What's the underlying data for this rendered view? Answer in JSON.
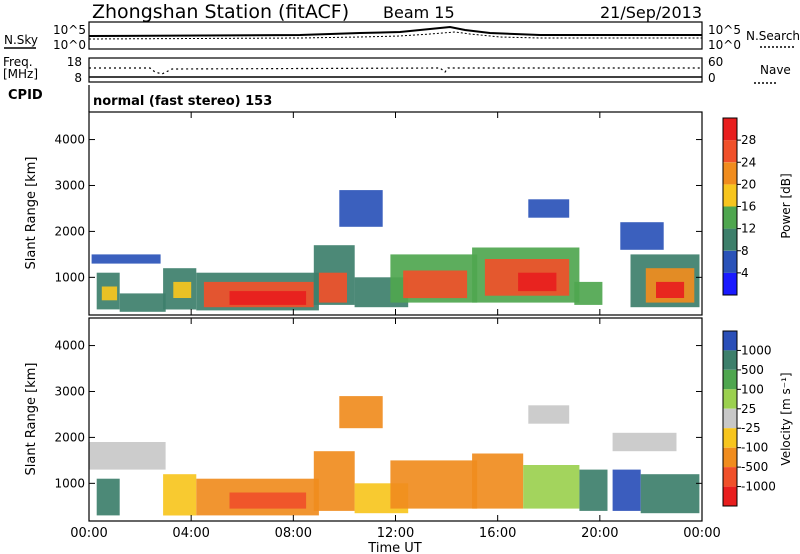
{
  "header": {
    "station": "Zhongshan Station (fitACF)",
    "beam": "Beam 15",
    "date": "21/Sep/2013"
  },
  "summary_panels": {
    "nsky_label": "N.Sky",
    "nsky_ticks": [
      "10^5",
      "10^0"
    ],
    "nsearch_label": "N.Search",
    "nsearch_ticks": [
      "10^5",
      "10^0"
    ],
    "freq_label": "Freq.",
    "freq_unit": "[MHz]",
    "freq_ticks": [
      "18",
      "8"
    ],
    "nave_label": "Nave",
    "nave_ticks": [
      "60",
      "0"
    ],
    "cpid_label": "CPID",
    "cpid_value": "normal (fast stereo) 153"
  },
  "chart_data": [
    {
      "type": "heatmap",
      "name": "power",
      "xlabel": "Time UT",
      "ylabel": "Slant Range [km]",
      "ylim": [
        180,
        4600
      ],
      "xlim": [
        0,
        24
      ],
      "x_ticks": [
        "00:00",
        "04:00",
        "08:00",
        "12:00",
        "16:00",
        "20:00",
        "00:00"
      ],
      "y_ticks": [
        1000,
        2000,
        3000,
        4000
      ],
      "colorbar": {
        "label": "Power [dB]",
        "tick_labels": [
          "4",
          "8",
          "12",
          "16",
          "20",
          "24",
          "28"
        ],
        "range": [
          0,
          30
        ],
        "colors": [
          "#1a1aff",
          "#2a52b8",
          "#3d7f6b",
          "#4fa64f",
          "#f7c51e",
          "#f08c1e",
          "#f0502a",
          "#e81e1e"
        ]
      },
      "regions": [
        {
          "t0": 0.3,
          "t1": 1.2,
          "r0": 300,
          "r1": 1100,
          "level": 8
        },
        {
          "t0": 0.5,
          "t1": 1.1,
          "r0": 500,
          "r1": 800,
          "level": 17
        },
        {
          "t0": 1.2,
          "t1": 3.0,
          "r0": 250,
          "r1": 650,
          "level": 8
        },
        {
          "t0": 2.9,
          "t1": 4.2,
          "r0": 300,
          "r1": 1200,
          "level": 10
        },
        {
          "t0": 3.3,
          "t1": 4.0,
          "r0": 550,
          "r1": 900,
          "level": 18
        },
        {
          "t0": 4.2,
          "t1": 9.0,
          "r0": 280,
          "r1": 1100,
          "level": 10
        },
        {
          "t0": 4.5,
          "t1": 8.8,
          "r0": 350,
          "r1": 900,
          "level": 23
        },
        {
          "t0": 5.5,
          "t1": 8.5,
          "r0": 400,
          "r1": 700,
          "level": 28
        },
        {
          "t0": 8.8,
          "t1": 10.4,
          "r0": 400,
          "r1": 1700,
          "level": 10
        },
        {
          "t0": 9.0,
          "t1": 10.1,
          "r0": 450,
          "r1": 1100,
          "level": 24
        },
        {
          "t0": 10.4,
          "t1": 12.5,
          "r0": 350,
          "r1": 1000,
          "level": 10
        },
        {
          "t0": 11.8,
          "t1": 15.2,
          "r0": 450,
          "r1": 1500,
          "level": 12
        },
        {
          "t0": 12.3,
          "t1": 14.8,
          "r0": 550,
          "r1": 1150,
          "level": 24
        },
        {
          "t0": 15.0,
          "t1": 19.2,
          "r0": 450,
          "r1": 1650,
          "level": 12
        },
        {
          "t0": 15.5,
          "t1": 18.8,
          "r0": 600,
          "r1": 1400,
          "level": 25
        },
        {
          "t0": 16.8,
          "t1": 18.3,
          "r0": 700,
          "r1": 1100,
          "level": 29
        },
        {
          "t0": 19.0,
          "t1": 20.1,
          "r0": 400,
          "r1": 900,
          "level": 12
        },
        {
          "t0": 21.2,
          "t1": 23.9,
          "r0": 350,
          "r1": 1500,
          "level": 10
        },
        {
          "t0": 21.8,
          "t1": 23.7,
          "r0": 450,
          "r1": 1200,
          "level": 22
        },
        {
          "t0": 22.2,
          "t1": 23.3,
          "r0": 550,
          "r1": 900,
          "level": 27
        },
        {
          "t0": 0.1,
          "t1": 2.8,
          "r0": 1300,
          "r1": 1500,
          "level": 6
        },
        {
          "t0": 9.8,
          "t1": 11.5,
          "r0": 2100,
          "r1": 2900,
          "level": 7
        },
        {
          "t0": 17.2,
          "t1": 18.8,
          "r0": 2300,
          "r1": 2700,
          "level": 6
        },
        {
          "t0": 20.8,
          "t1": 22.5,
          "r0": 1600,
          "r1": 2200,
          "level": 6
        }
      ]
    },
    {
      "type": "heatmap",
      "name": "velocity",
      "xlabel": "Time UT",
      "ylabel": "Slant Range [km]",
      "ylim": [
        180,
        4600
      ],
      "xlim": [
        0,
        24
      ],
      "x_ticks": [
        "00:00",
        "04:00",
        "08:00",
        "12:00",
        "16:00",
        "20:00",
        "00:00"
      ],
      "y_ticks": [
        1000,
        2000,
        3000,
        4000
      ],
      "colorbar": {
        "label": "Velocity [m s⁻¹]",
        "tick_labels": [
          "1000",
          "500",
          "100",
          "25",
          "-25",
          "-100",
          "-500",
          "-1000"
        ],
        "colors": [
          "#2a4fb8",
          "#3d7f6b",
          "#4fa64f",
          "#9bd04f",
          "#c8c8c8",
          "#f7c51e",
          "#f08c1e",
          "#f0502a",
          "#e81e1e"
        ]
      },
      "regions": [
        {
          "t0": 0.3,
          "t1": 1.2,
          "r0": 300,
          "r1": 1100,
          "cls": 1
        },
        {
          "t0": 0.0,
          "t1": 3.0,
          "r0": 1300,
          "r1": 1900,
          "cls": 4
        },
        {
          "t0": 2.9,
          "t1": 4.2,
          "r0": 300,
          "r1": 1200,
          "cls": 5
        },
        {
          "t0": 4.2,
          "t1": 9.0,
          "r0": 300,
          "r1": 1100,
          "cls": 6
        },
        {
          "t0": 5.5,
          "t1": 8.5,
          "r0": 450,
          "r1": 800,
          "cls": 7
        },
        {
          "t0": 8.8,
          "t1": 10.4,
          "r0": 400,
          "r1": 1700,
          "cls": 6
        },
        {
          "t0": 10.4,
          "t1": 12.5,
          "r0": 350,
          "r1": 1000,
          "cls": 5
        },
        {
          "t0": 11.8,
          "t1": 15.2,
          "r0": 450,
          "r1": 1500,
          "cls": 6
        },
        {
          "t0": 15.0,
          "t1": 17.0,
          "r0": 450,
          "r1": 1650,
          "cls": 6
        },
        {
          "t0": 17.0,
          "t1": 19.2,
          "r0": 450,
          "r1": 1400,
          "cls": 3
        },
        {
          "t0": 19.2,
          "t1": 20.3,
          "r0": 400,
          "r1": 1300,
          "cls": 1
        },
        {
          "t0": 20.5,
          "t1": 21.6,
          "r0": 400,
          "r1": 1300,
          "cls": 0
        },
        {
          "t0": 21.6,
          "t1": 23.9,
          "r0": 350,
          "r1": 1200,
          "cls": 1
        },
        {
          "t0": 17.2,
          "t1": 18.8,
          "r0": 2300,
          "r1": 2700,
          "cls": 4
        },
        {
          "t0": 20.5,
          "t1": 23.0,
          "r0": 1700,
          "r1": 2100,
          "cls": 4
        },
        {
          "t0": 9.8,
          "t1": 11.5,
          "r0": 2200,
          "r1": 2900,
          "cls": 6
        }
      ]
    }
  ]
}
